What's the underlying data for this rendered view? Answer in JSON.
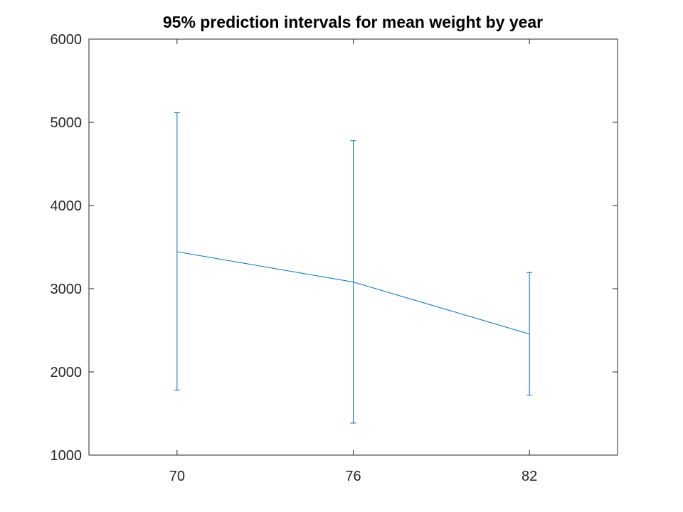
{
  "chart_data": {
    "type": "line",
    "title": "95% prediction intervals for mean weight by year",
    "xlabel": "",
    "ylabel": "",
    "x": [
      70,
      76,
      82
    ],
    "xticks": [
      "70",
      "76",
      "82"
    ],
    "xlim": [
      67,
      85
    ],
    "ylim": [
      1000,
      6000
    ],
    "yticks": [
      "1000",
      "2000",
      "3000",
      "4000",
      "5000",
      "6000"
    ],
    "grid": false,
    "series": [
      {
        "values": [
          3445,
          3080,
          2455
        ],
        "lower": [
          1780,
          1385,
          1720
        ],
        "upper": [
          5115,
          4780,
          3195
        ],
        "color": "#0072BD"
      }
    ]
  }
}
